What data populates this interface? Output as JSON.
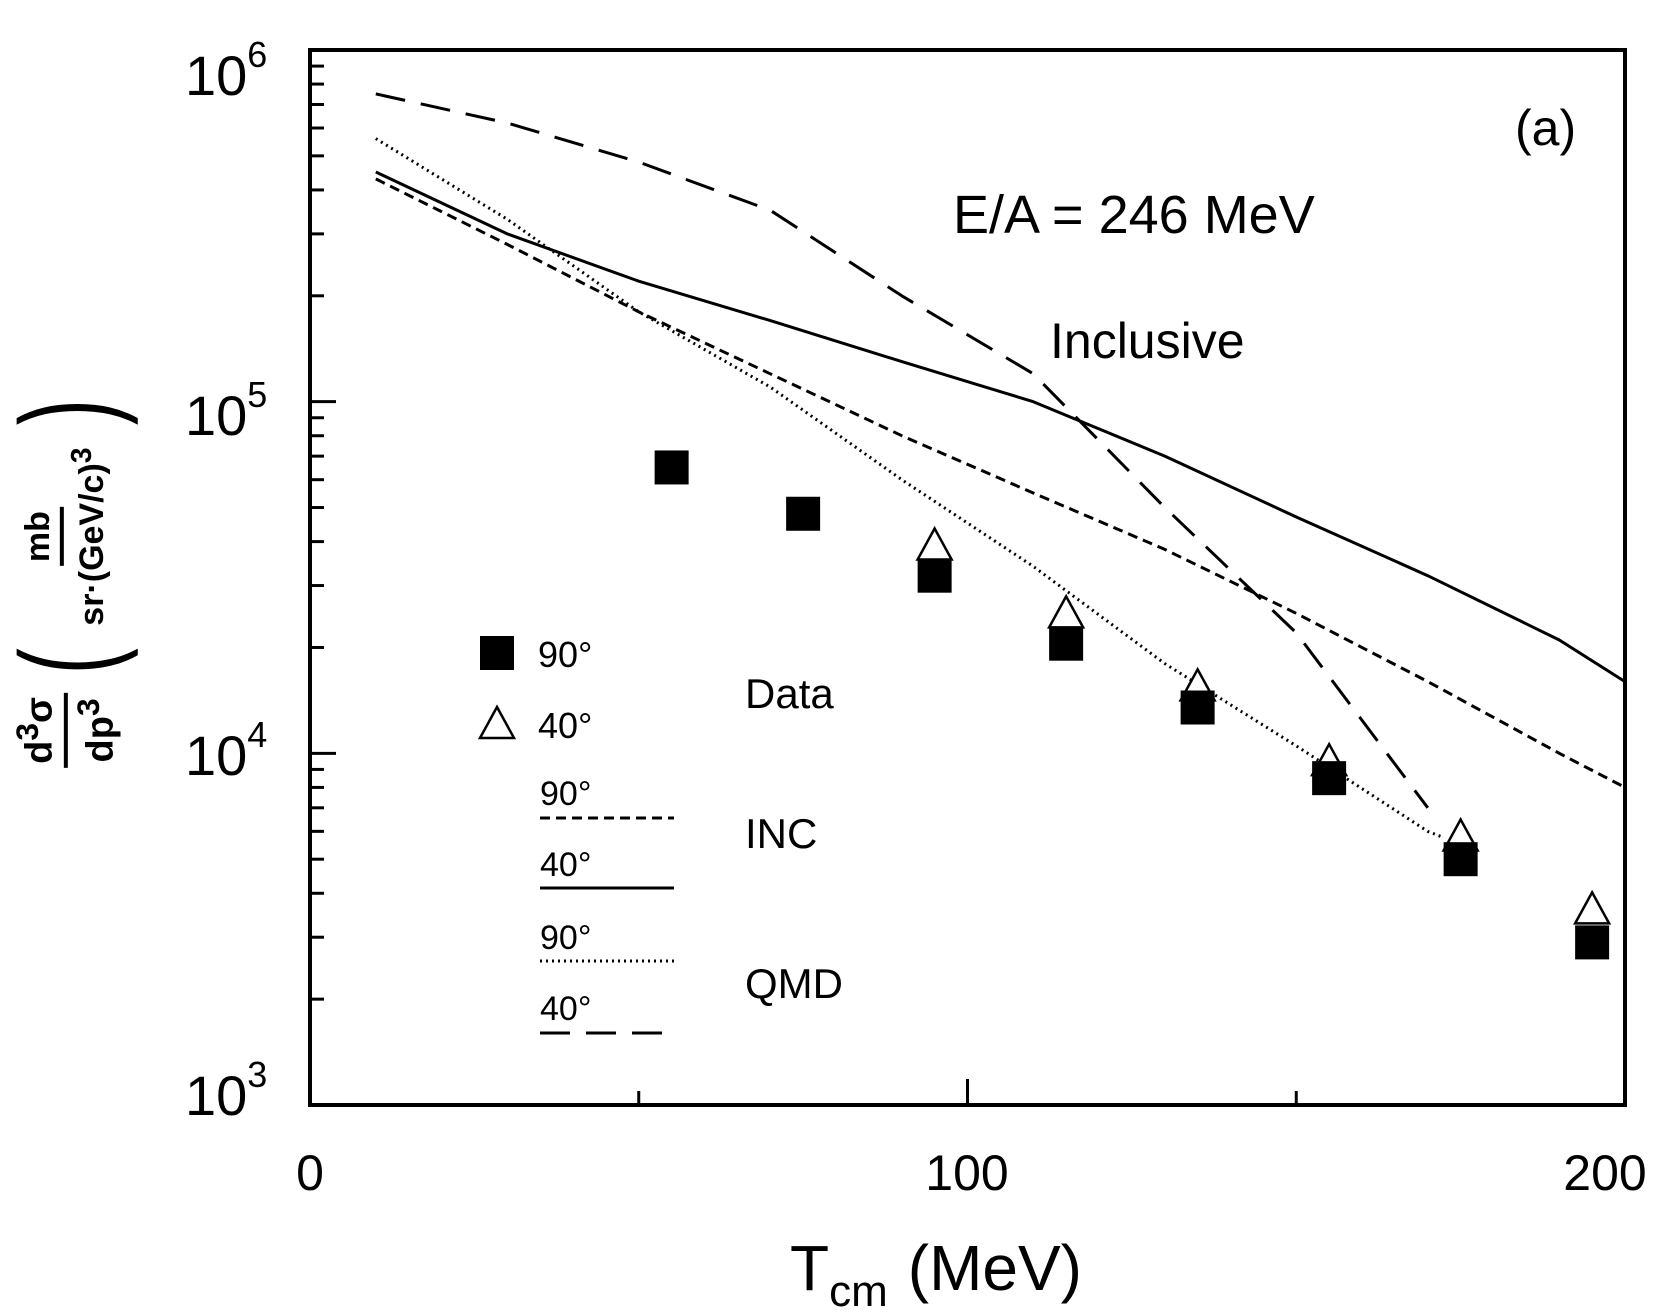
{
  "chart_data": {
    "type": "scatter",
    "panel_label": "(a)",
    "annotation_energy": "E/A = 246 MeV",
    "annotation_inclusive": "Inclusive",
    "xlabel": "T",
    "xlabel_sub": "cm",
    "xlabel_unit": "(MeV)",
    "ylabel": {
      "left_num": "d",
      "left_num_sup": "3",
      "left_num_sym": "σ",
      "left_den": "dp",
      "left_den_sup": "3",
      "right_num": "mb",
      "right_den": "sr·(GeV/c)",
      "right_den_sup": "3"
    },
    "xlim": [
      0,
      200
    ],
    "ylim": [
      1000,
      1000000
    ],
    "yscale": "log",
    "x_ticks": [
      "0",
      "100",
      "200"
    ],
    "y_ticks": [
      {
        "base": "10",
        "exp": "3"
      },
      {
        "base": "10",
        "exp": "4"
      },
      {
        "base": "10",
        "exp": "5"
      },
      {
        "base": "10",
        "exp": "6"
      }
    ],
    "legend": {
      "data_label": "Data",
      "inc_label": "INC",
      "qmd_label": "QMD",
      "sq_angle": "90°",
      "tri_angle": "40°",
      "inc90_angle": "90°",
      "inc40_angle": "40°",
      "qmd90_angle": "90°",
      "qmd40_angle": "40°"
    },
    "series": [
      {
        "name": "Data 90°",
        "marker": "filled-square",
        "x": [
          55,
          75,
          95,
          115,
          135,
          155,
          175,
          195
        ],
        "y": [
          65000,
          48000,
          32000,
          20500,
          13500,
          8500,
          5000,
          2900
        ]
      },
      {
        "name": "Data 40°",
        "marker": "open-triangle",
        "x": [
          95,
          115,
          135,
          155,
          175,
          195
        ],
        "y": [
          39000,
          25000,
          15500,
          9500,
          5800,
          3600
        ]
      },
      {
        "name": "INC 90°",
        "style": "short-dash",
        "x": [
          10,
          30,
          50,
          70,
          90,
          110,
          130,
          150,
          170,
          190,
          200
        ],
        "y": [
          430000,
          280000,
          180000,
          120000,
          80000,
          55000,
          38000,
          25000,
          16000,
          10000,
          8000
        ]
      },
      {
        "name": "INC 40°",
        "style": "solid",
        "x": [
          10,
          30,
          50,
          70,
          90,
          110,
          130,
          150,
          170,
          190,
          200
        ],
        "y": [
          450000,
          300000,
          220000,
          170000,
          130000,
          100000,
          70000,
          47000,
          32000,
          21000,
          16000
        ]
      },
      {
        "name": "QMD 90°",
        "style": "dotted",
        "x": [
          10,
          30,
          50,
          70,
          90,
          110,
          130,
          150,
          170,
          172
        ],
        "y": [
          560000,
          330000,
          180000,
          110000,
          60000,
          34000,
          18000,
          10500,
          6000,
          5800
        ]
      },
      {
        "name": "QMD 40°",
        "style": "long-dash",
        "x": [
          10,
          30,
          50,
          70,
          90,
          110,
          130,
          150,
          170
        ],
        "y": [
          750000,
          620000,
          480000,
          350000,
          200000,
          120000,
          50000,
          22000,
          7000
        ]
      }
    ]
  }
}
